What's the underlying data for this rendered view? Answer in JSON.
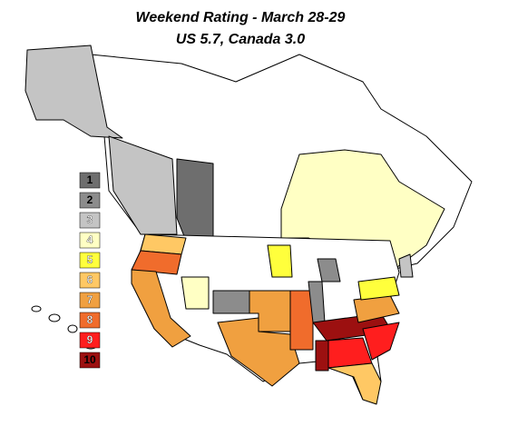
{
  "title": "Weekend Rating - March 28-29",
  "subtitle": "US 5.7, Canada 3.0",
  "legend": [
    {
      "label": "1",
      "color": "#6e6e6e"
    },
    {
      "label": "2",
      "color": "#8c8c8c"
    },
    {
      "label": "3",
      "color": "#c4c4c4"
    },
    {
      "label": "4",
      "color": "#ffffc4"
    },
    {
      "label": "5",
      "color": "#ffff3c"
    },
    {
      "label": "6",
      "color": "#ffc864"
    },
    {
      "label": "7",
      "color": "#f0a040"
    },
    {
      "label": "8",
      "color": "#f06c2c"
    },
    {
      "label": "9",
      "color": "#ff1e1e"
    },
    {
      "label": "10",
      "color": "#9c1010"
    }
  ]
}
